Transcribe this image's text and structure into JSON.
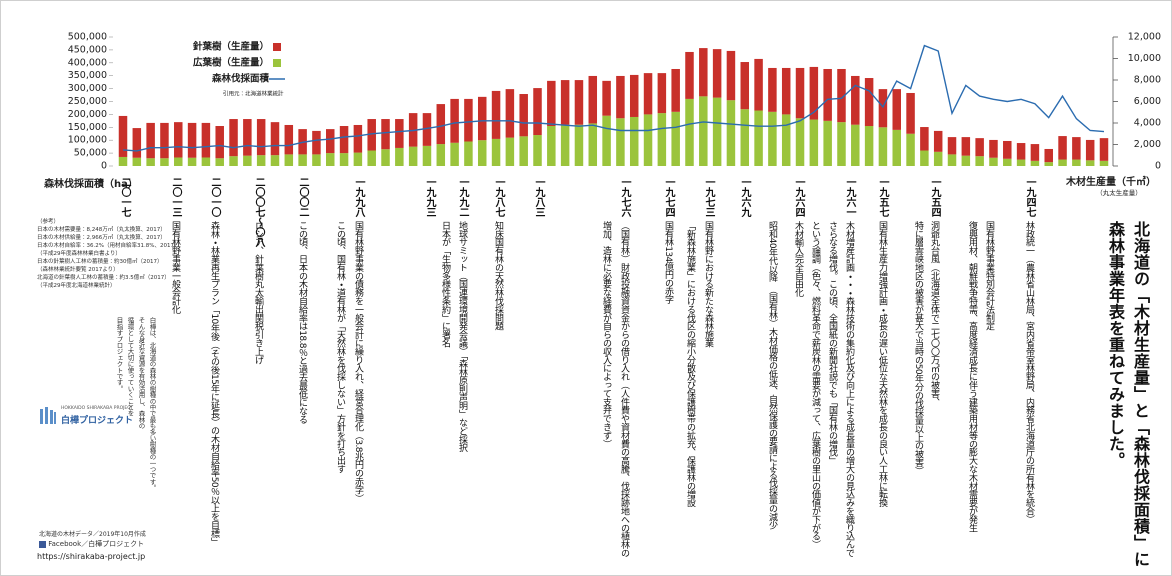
{
  "title": [
    "北海道の「木材生産量」と「森林伐採面積」に",
    "森林事業年表を重ねてみました。"
  ],
  "chart_data": {
    "type": "bar",
    "stacked": true,
    "categories": [
      null,
      null,
      null,
      null,
      null,
      null,
      null,
      null,
      null,
      null,
      null,
      null,
      null,
      null,
      null,
      null,
      null,
      null,
      null,
      null,
      null,
      null,
      null,
      null,
      null,
      null,
      null,
      null,
      null,
      null,
      null,
      null,
      null,
      null,
      null,
      null,
      null,
      null,
      null,
      null,
      null,
      null,
      null,
      null,
      null,
      null,
      null,
      null,
      null,
      null,
      null,
      null,
      null,
      null,
      null,
      null,
      null,
      null,
      null,
      null,
      null,
      null,
      null,
      null,
      null,
      null,
      null,
      null,
      null,
      null,
      null,
      null
    ],
    "series": [
      {
        "name": "針葉樹（生産量）",
        "color": "#c8302a",
        "values": [
          159000,
          115000,
          137000,
          137000,
          137000,
          135000,
          134000,
          125000,
          144000,
          142000,
          140000,
          128000,
          114000,
          98000,
          91000,
          93000,
          105000,
          107000,
          122000,
          117000,
          112000,
          130000,
          127000,
          155000,
          170000,
          165000,
          168000,
          186000,
          188000,
          164000,
          182000,
          175000,
          173000,
          173000,
          184000,
          135000,
          164000,
          163000,
          160000,
          155000,
          166000,
          182000,
          187000,
          188000,
          191000,
          183000,
          200000,
          170000,
          180000,
          195000,
          204000,
          201000,
          206000,
          189000,
          186000,
          148000,
          158000,
          158000,
          91000,
          81000,
          67000,
          72000,
          70000,
          69000,
          69000,
          64000,
          65000,
          51000,
          91000,
          87000,
          79000,
          88000
        ]
      },
      {
        "name": "広葉樹（生産量）",
        "color": "#9bc43c",
        "values": [
          35000,
          32000,
          30000,
          30000,
          33000,
          32000,
          33000,
          30000,
          38000,
          40000,
          42000,
          42000,
          45000,
          45000,
          45000,
          50000,
          50000,
          52000,
          60000,
          65000,
          70000,
          75000,
          78000,
          85000,
          90000,
          95000,
          100000,
          105000,
          110000,
          115000,
          120000,
          155000,
          160000,
          160000,
          165000,
          195000,
          185000,
          190000,
          200000,
          205000,
          210000,
          260000,
          270000,
          265000,
          255000,
          220000,
          215000,
          210000,
          200000,
          185000,
          180000,
          175000,
          170000,
          160000,
          155000,
          150000,
          140000,
          125000,
          60000,
          55000,
          45000,
          40000,
          38000,
          32000,
          28000,
          25000,
          20000,
          15000,
          25000,
          25000,
          22000,
          20000
        ]
      },
      {
        "name": "森林伐採面積",
        "color": "#2b6cb0",
        "type": "line",
        "axis": "y2",
        "values": [
          1500,
          1400,
          1700,
          1700,
          1800,
          1700,
          1800,
          1900,
          1700,
          1900,
          1800,
          1900,
          1900,
          2200,
          2400,
          2500,
          2700,
          2800,
          3000,
          3100,
          3200,
          3300,
          3500,
          3700,
          4000,
          4100,
          4200,
          4200,
          4200,
          4000,
          4000,
          3900,
          3800,
          3700,
          3800,
          3500,
          3300,
          3300,
          3300,
          3500,
          3600,
          3900,
          4100,
          4000,
          3900,
          3800,
          3700,
          3700,
          3800,
          4200,
          5000,
          6200,
          6300,
          7500,
          7000,
          5500,
          7900,
          7200,
          11200,
          10700,
          4900,
          7500,
          6500,
          6200,
          6000,
          6200,
          5800,
          4500,
          6500,
          4400,
          3300,
          3200
        ]
      }
    ],
    "ylim": [
      0,
      500000
    ],
    "yticks": [
      0,
      {
        "value": 50000,
        "label": "50,000"
      },
      {
        "value": 100000,
        "label": "100,000"
      },
      {
        "value": 150000,
        "label": "150,000"
      },
      {
        "value": 200000,
        "label": "200,000"
      },
      {
        "value": 250000,
        "label": "250,000"
      },
      {
        "value": 300000,
        "label": "300,000"
      },
      {
        "value": 350000,
        "label": "350,000"
      },
      {
        "value": 400000,
        "label": "400,000"
      },
      {
        "value": 450000,
        "label": "450,000"
      },
      {
        "value": 500000,
        "label": "500,000"
      }
    ],
    "y2lim": [
      0,
      12000
    ],
    "y2ticks": [
      0,
      {
        "value": 2000,
        "label": "2,000"
      },
      {
        "value": 4000,
        "label": "4,000"
      },
      {
        "value": 6000,
        "label": "6,000"
      },
      {
        "value": 8000,
        "label": "8,000"
      },
      {
        "value": 10000,
        "label": "10,000"
      },
      {
        "value": 12000,
        "label": "12,000"
      }
    ],
    "ylabel": "森林伐採面積（ha）",
    "y2label": "木材生産量（千㎥）",
    "y2label_note": "（丸太生産量）",
    "source": "引用元：北海道林業統計",
    "grid": false
  },
  "timeline": [
    {
      "year": "二〇一七"
    },
    {
      "year": "二〇一三",
      "lines": [
        "国有林野事業一般会計化"
      ]
    },
    {
      "year": "二〇一〇",
      "lines": [
        "森林・林業再生プラン「10年後（その後15年に延長）の木材自給率50％以上を目標」"
      ]
    },
    {
      "year": "二〇〇七〜〇八",
      "lines": [
        "ロシア、針葉樹丸太輸出関税引き上げ"
      ]
    },
    {
      "year": "二〇〇二",
      "lines": [
        "この頃、日本の木材自給率は18.8％と過去最低になる"
      ]
    },
    {
      "year": "一九九八",
      "lines": [
        "国有林野事業の債務を一般会計に繰り入れ、経営合理化（3.8兆円の赤字）",
        "この頃、国有林・道有林が「天然林を伐採しない」方針を打ち出す"
      ]
    },
    {
      "year": "一九九三"
    },
    {
      "year": "一九九二",
      "lines": [
        "地球サミット（国連環境開発会議）「森林原則声明」など採択",
        "日本が「生物多様性条約」に署名"
      ]
    },
    {
      "year": "一九八七",
      "lines": [
        "知床国有林の天然林伐採問題"
      ]
    },
    {
      "year": "一九八三"
    },
    {
      "year": "一九七六",
      "lines": [
        "（国有林）財政投融資資金からの借り入れ（人件費や資材費の高騰、伐採跡地への植林の",
        "増加、造林に必要な経費が自らの収入によって支弁できず）"
      ]
    },
    {
      "year": "一九七四",
      "lines": [
        "国有林134億円の赤字"
      ]
    },
    {
      "year": "一九七三",
      "lines": [
        "国有林野における新たな森林施業",
        "「新森林施業」における伐区の縮小分散及び保護樹帯の拡充、保護林の増設"
      ]
    },
    {
      "year": "一九六九"
    },
    {
      "year": "一九六四",
      "lines": [
        "木材輸入完全自由化",
        "昭和40年代以降　（国有林）木材価格の低迷、自然保護の要請による伐採量の減少"
      ]
    },
    {
      "year": "一九六一",
      "lines": [
        "木材増産計画・・・森林技術の集約化及び向上による成長量の増大の見込みを織り込んで",
        "さらなる増伐。この頃、全国紙の新聞社説でも「国有林の増伐」",
        "という論調（色々、燃料革命で薪炭林の需要が減って、広葉樹の里山の価値が下がる）"
      ]
    },
    {
      "year": "一九五七",
      "lines": [
        "国有林生産力増強計画・成長の遅い低位な天然林を成長の良い人工林に転換"
      ]
    },
    {
      "year": "一九五四",
      "lines": [
        "洞爺丸台風（北海道全体で二七〇〇万㎥の被害、",
        "特に層雲峡地区の被害が甚大で当時の50年分の伐採量以上の被害）"
      ]
    },
    {
      "year": "一九四七",
      "lines": [
        "林政統一（農林省山林局、宮内省帝室林野局、内務省北海道庁の所有林を統合）",
        "国有林野事業特別会計法制定",
        "復興用材、朝鮮戦争特需、高度経済成長に伴う建築用材等の膨大な木材需要が発生"
      ]
    }
  ],
  "references": [
    "（参考）",
    "日本の木材需要量：8,248万㎥（丸太換算、2017）",
    "日本の木材供給量：2,966万㎥（丸太換算、2017）",
    "日本の木材自給率：36.2%（用材自給率31.8%、2017）",
    "（平成29年度森林林業白書より）",
    "日本の針葉樹人工林の蓄積量：約30億㎥（2017）",
    "（森林林業統計要覧 2017より）",
    "北海道の針葉樹人工林の蓄積量：約3.5億㎥（2017）",
    "（平成29年度北海道林業統計）"
  ],
  "message": [
    "白樺は、北海道の森林の樹種の中で最も多い樹種の一つです。",
    "そんな身近な資源を有効活用し、森林の",
    "循環として大切に使っていくことを",
    "目指すプロジェクトです。"
  ],
  "footer": {
    "logo_sub": "HOKKAIDO SHIRAKABA PROJECT",
    "logo": "白樺プロジェクト",
    "note": "北海道の木材データ／2019年10月作成",
    "facebook": "Facebook／白樺プロジェクト",
    "url": "https://shirakaba-project.jp"
  }
}
